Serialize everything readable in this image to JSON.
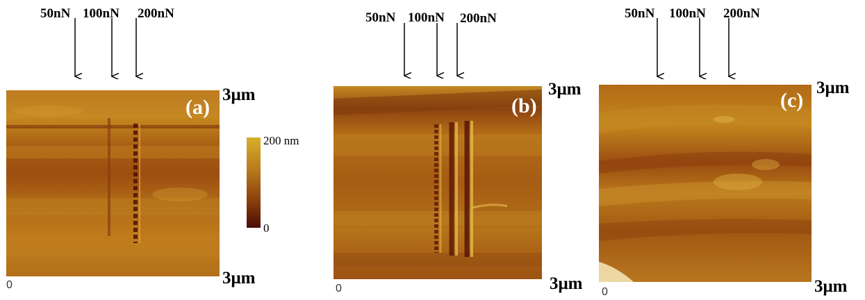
{
  "force_labels": {
    "low": "50nN",
    "mid": "100nN",
    "high": "200nN"
  },
  "panels": [
    {
      "id": "a",
      "label": "(a)",
      "scale_top": "3μm",
      "scale_right": "3μm",
      "origin": "0"
    },
    {
      "id": "b",
      "label": "(b)",
      "scale_top": "3μm",
      "scale_right": "3μm",
      "origin": "0"
    },
    {
      "id": "c",
      "label": "(c)",
      "scale_top": "3μm",
      "scale_right": "3μm",
      "origin": "0"
    }
  ],
  "colorbar": {
    "max_label": "200 nm",
    "min_label": "0"
  },
  "colors": {
    "afm_light": "#d6b02a",
    "afm_mid": "#b97b1a",
    "afm_dark": "#4a0c05"
  }
}
